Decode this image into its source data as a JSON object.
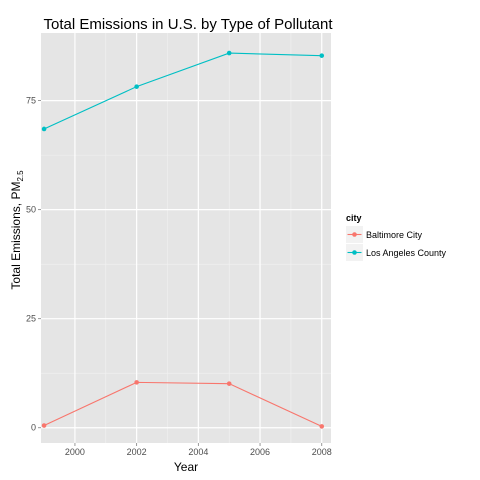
{
  "chart_data": {
    "type": "line",
    "title": "Total Emissions in U.S. by Type of Pollutant",
    "xlabel": "Year",
    "ylabel_main": "Total Emissions, PM",
    "ylabel_sub": "2.5",
    "x": [
      1999,
      2002,
      2005,
      2008
    ],
    "xlim": [
      1998.9,
      2008.3
    ],
    "ylim": [
      -3.5,
      90.5
    ],
    "x_ticks": [
      2000,
      2002,
      2004,
      2006,
      2008
    ],
    "y_ticks": [
      0,
      25,
      50,
      75
    ],
    "grid": true,
    "legend_position": "right",
    "legend_title": "city",
    "series": [
      {
        "name": "Baltimore City",
        "color": "#F8766D",
        "values": [
          0.5,
          10.4,
          10.1,
          0.3
        ]
      },
      {
        "name": "Los Angeles County",
        "color": "#00BFC4",
        "values": [
          68.5,
          78.2,
          85.9,
          85.3
        ]
      }
    ]
  }
}
